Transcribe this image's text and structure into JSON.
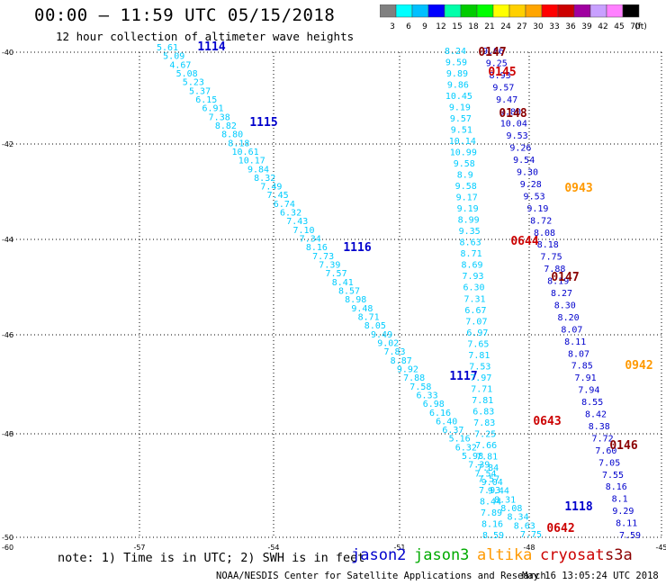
{
  "header": {
    "title": "00:00 — 11:59 UTC 05/15/2018",
    "subtitle": "12 hour collection of altimeter wave heights"
  },
  "colorbar": {
    "labels": [
      "3",
      "6",
      "9",
      "12",
      "15",
      "18",
      "21",
      "24",
      "27",
      "30",
      "33",
      "36",
      "39",
      "42",
      "45",
      "70",
      "(ft)"
    ],
    "colors": [
      "#808080",
      "#00ffff",
      "#00c0ff",
      "#0000ff",
      "#00ffaa",
      "#00cc00",
      "#00ff00",
      "#ffff00",
      "#ffd000",
      "#ffa500",
      "#ff0000",
      "#cc0000",
      "#a000a0",
      "#c8a0ff",
      "#ff80ff",
      "#000000"
    ]
  },
  "map": {
    "lon_ticks": [
      "-57",
      "-54",
      "-51",
      "-48",
      "-45"
    ],
    "lat_ticks": [
      "-40",
      "-42",
      "-44",
      "-46",
      "-48",
      "-50"
    ],
    "corner_lat": "-60"
  },
  "tracks": [
    {
      "sat": "jason2",
      "color": "#00ccff",
      "start": [
        186,
        56
      ],
      "end": [
        590,
        597
      ],
      "label": "1114",
      "label_pos": [
        235,
        56
      ],
      "label_color": "#0000cc",
      "values": [
        "5.61",
        "5.09",
        "4.67",
        "5.08",
        "5.23",
        "5.37",
        "6.15",
        "6.91",
        "7.38",
        "8.82",
        "8.80",
        "8.18",
        "10.61",
        "10.17",
        "9.84",
        "8.32",
        "7.49",
        "7.45",
        "6.74",
        "6.32",
        "7.43",
        "7.10",
        "7.34",
        "8.16",
        "7.73",
        "7.39",
        "7.57",
        "8.41",
        "8.57",
        "8.98",
        "9.48",
        "8.71",
        "8.05",
        "9.49",
        "9.02",
        "7.83",
        "8.87",
        "9.92",
        "7.88",
        "7.58",
        "6.33",
        "6.98",
        "6.16",
        "6.40",
        "6.37",
        "5.16",
        "6.32",
        "5.98",
        "7.39",
        "7.54",
        "9.04",
        "9.44",
        "8.31",
        "8.08",
        "8.34",
        "8.63",
        "7.75"
      ]
    },
    {
      "sat": "jason2",
      "color": "#0000cc",
      "start": [
        0,
        0
      ],
      "end": [
        0,
        0
      ],
      "label": "1115",
      "label_pos": [
        293,
        140
      ],
      "label_color": "#0000cc",
      "values": []
    },
    {
      "sat": "jason2",
      "color": "#0000cc",
      "start": [
        0,
        0
      ],
      "end": [
        0,
        0
      ],
      "label": "1116",
      "label_pos": [
        397,
        279
      ],
      "label_color": "#0000cc",
      "values": []
    },
    {
      "sat": "jason2",
      "color": "#0000cc",
      "start": [
        0,
        0
      ],
      "end": [
        0,
        0
      ],
      "label": "1117",
      "label_pos": [
        515,
        422
      ],
      "label_color": "#0000cc",
      "values": []
    },
    {
      "sat": "jason2",
      "color": "#00ccff",
      "start": [
        506,
        60
      ],
      "end": [
        548,
        598
      ],
      "label": "",
      "label_pos": [
        0,
        0
      ],
      "label_color": "#0000cc",
      "values": [
        "8.24",
        "9.59",
        "9.89",
        "9.86",
        "10.45",
        "9.19",
        "9.57",
        "9.51",
        "10.14",
        "10.99",
        "9.58",
        "8.9",
        "9.58",
        "9.17",
        "9.19",
        "8.99",
        "9.35",
        "8.63",
        "8.71",
        "8.69",
        "7.93",
        "6.30",
        "7.31",
        "6.67",
        "7.07",
        "6.97",
        "7.65",
        "7.81",
        "7.53",
        "7.97",
        "7.71",
        "7.81",
        "6.83",
        "7.83",
        "7.25",
        "7.66",
        "7.81",
        "7.84",
        "7.57",
        "7.93",
        "8.44",
        "7.89",
        "8.16",
        "8.59"
      ]
    },
    {
      "sat": "jason2",
      "color": "#0000cc",
      "start": [
        548,
        60
      ],
      "end": [
        700,
        598
      ],
      "label": "1118",
      "label_pos": [
        643,
        567
      ],
      "label_color": "#0000cc",
      "values": [
        "9.06",
        "9.25",
        "8.93",
        "9.57",
        "9.47",
        "9.80",
        "10.04",
        "9.53",
        "9.26",
        "9.54",
        "9.30",
        "9.28",
        "9.53",
        "9.19",
        "8.72",
        "8.08",
        "8.18",
        "7.75",
        "7.88",
        "8.19",
        "8.27",
        "8.30",
        "8.20",
        "8.07",
        "8.11",
        "8.07",
        "7.85",
        "7.91",
        "7.94",
        "8.55",
        "8.42",
        "8.38",
        "7.72",
        "7.60",
        "7.05",
        "7.55",
        "8.16",
        "8.1",
        "9.29",
        "8.11",
        "7.59"
      ]
    },
    {
      "sat": "s3a",
      "color": "#cc0000",
      "start": [
        0,
        0
      ],
      "end": [
        0,
        0
      ],
      "label": "0145",
      "label_pos": [
        558,
        84
      ],
      "label_color": "#cc0000",
      "values": []
    },
    {
      "sat": "s3a",
      "color": "#8b0000",
      "start": [
        0,
        0
      ],
      "end": [
        0,
        0
      ],
      "label": "0147",
      "label_pos": [
        547,
        62
      ],
      "label_color": "#8b0000",
      "values": []
    },
    {
      "sat": "s3a",
      "color": "#8b0000",
      "start": [
        0,
        0
      ],
      "end": [
        0,
        0
      ],
      "label": "0148",
      "label_pos": [
        570,
        130
      ],
      "label_color": "#8b0000",
      "values": []
    },
    {
      "sat": "altika",
      "color": "#ff9900",
      "start": [
        0,
        0
      ],
      "end": [
        0,
        0
      ],
      "label": "0943",
      "label_pos": [
        643,
        213
      ],
      "label_color": "#ff9900",
      "values": []
    },
    {
      "sat": "s3a",
      "color": "#cc0000",
      "start": [
        0,
        0
      ],
      "end": [
        0,
        0
      ],
      "label": "0644",
      "label_pos": [
        583,
        272
      ],
      "label_color": "#cc0000",
      "values": []
    },
    {
      "sat": "s3a",
      "color": "#8b0000",
      "start": [
        0,
        0
      ],
      "end": [
        0,
        0
      ],
      "label": "0147",
      "label_pos": [
        628,
        312
      ],
      "label_color": "#8b0000",
      "values": []
    },
    {
      "sat": "altika",
      "color": "#ff9900",
      "start": [
        0,
        0
      ],
      "end": [
        0,
        0
      ],
      "label": "0942",
      "label_pos": [
        710,
        410
      ],
      "label_color": "#ff9900",
      "values": []
    },
    {
      "sat": "s3a",
      "color": "#cc0000",
      "start": [
        0,
        0
      ],
      "end": [
        0,
        0
      ],
      "label": "0643",
      "label_pos": [
        608,
        472
      ],
      "label_color": "#cc0000",
      "values": []
    },
    {
      "sat": "s3a",
      "color": "#8b0000",
      "start": [
        0,
        0
      ],
      "end": [
        0,
        0
      ],
      "label": "0146",
      "label_pos": [
        693,
        499
      ],
      "label_color": "#8b0000",
      "values": []
    },
    {
      "sat": "s3a",
      "color": "#cc0000",
      "start": [
        0,
        0
      ],
      "end": [
        0,
        0
      ],
      "label": "0642",
      "label_pos": [
        623,
        591
      ],
      "label_color": "#cc0000",
      "values": []
    },
    {
      "sat": "jason2",
      "color": "#0000cc",
      "start": [
        0,
        0
      ],
      "end": [
        0,
        0
      ],
      "label": "",
      "label_pos": [
        0,
        0
      ],
      "label_color": "#0000cc",
      "values": []
    }
  ],
  "footer": {
    "note": "note: 1) Time is in UTC; 2) SWH is in feet",
    "legend": [
      {
        "name": "jason2",
        "color": "#0000cc"
      },
      {
        "name": "jason3",
        "color": "#00aa00"
      },
      {
        "name": "altika",
        "color": "#ff9900"
      },
      {
        "name": "cryosat",
        "color": "#cc0000"
      },
      {
        "name": "s3a",
        "color": "#8b0000"
      }
    ],
    "credit": "NOAA/NESDIS Center for Satellite Applications and Research",
    "timestamp": "May 16 13:05:24 UTC 2018"
  }
}
